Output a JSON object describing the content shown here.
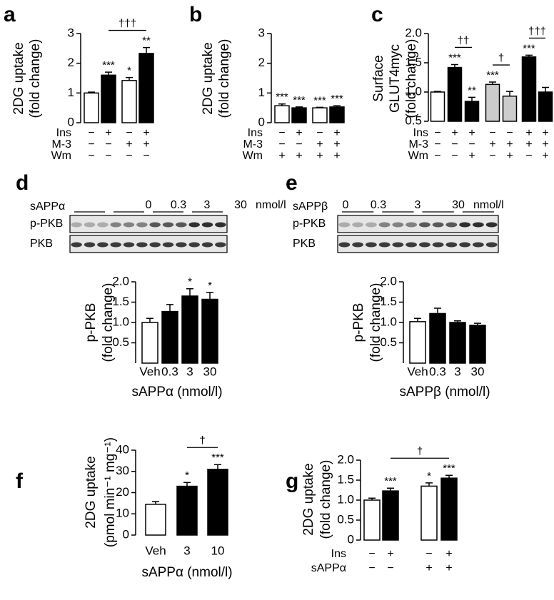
{
  "chart_data": [
    {
      "type": "bar",
      "panel": "a",
      "ylabel": [
        "2DG uptake",
        "(fold change)"
      ],
      "ylim": [
        0,
        3
      ],
      "yticks": [
        0,
        1,
        2,
        3
      ],
      "values": [
        1.0,
        1.6,
        1.42,
        2.33
      ],
      "errors": [
        0.03,
        0.1,
        0.1,
        0.2
      ],
      "colors": [
        "#ffffff",
        "#000000",
        "#ffffff",
        "#000000"
      ],
      "annotations": [
        null,
        "***",
        "*",
        "**"
      ],
      "brackets": [
        {
          "bars": [
            1,
            3
          ],
          "label": "†††"
        }
      ],
      "conditions": [
        {
          "label": "Ins",
          "signs": [
            "−",
            "+",
            "−",
            "+"
          ]
        },
        {
          "label": "M-3",
          "signs": [
            "−",
            "−",
            "+",
            "+"
          ]
        },
        {
          "label": "Wm",
          "signs": [
            "−",
            "−",
            "−",
            "−"
          ]
        }
      ]
    },
    {
      "type": "bar",
      "panel": "b",
      "ylabel": [
        "2DG uptake",
        "(fold change)"
      ],
      "ylim": [
        0,
        3
      ],
      "yticks": [
        0,
        1,
        2,
        3
      ],
      "values": [
        0.57,
        0.5,
        0.5,
        0.53
      ],
      "errors": [
        0.06,
        0.03,
        0.02,
        0.04
      ],
      "colors": [
        "#ffffff",
        "#000000",
        "#ffffff",
        "#000000"
      ],
      "annotations": [
        "***",
        "***",
        "***",
        "***"
      ],
      "conditions": [
        {
          "label": "Ins",
          "signs": [
            "−",
            "+",
            "−",
            "+"
          ]
        },
        {
          "label": "M-3",
          "signs": [
            "−",
            "−",
            "+",
            "+"
          ]
        },
        {
          "label": "Wm",
          "signs": [
            "+",
            "+",
            "+",
            "+"
          ]
        }
      ]
    },
    {
      "type": "bar",
      "panel": "c",
      "ylabel": [
        "Surface",
        "GLUT4myc",
        "(fold change)"
      ],
      "ylim": [
        0.5,
        2.0
      ],
      "yticks": [
        0.5,
        {
          "value": 1.0,
          "label": "1.0"
        },
        1.5,
        {
          "value": 2.0,
          "label": "2.0"
        }
      ],
      "values": [
        1.0,
        1.42,
        0.84,
        1.13,
        0.93,
        1.6,
        1.0
      ],
      "errors": [
        0.01,
        0.05,
        0.07,
        0.04,
        0.08,
        0.03,
        0.08
      ],
      "colors": [
        "#ffffff",
        "#000000",
        "#000000",
        "#cccccc",
        "#cccccc",
        "#000000",
        "#000000"
      ],
      "annotations": [
        null,
        "***",
        "**",
        "***",
        null,
        "***",
        null
      ],
      "brackets": [
        {
          "bars": [
            1,
            2
          ],
          "label": "††"
        },
        {
          "bars": [
            3,
            4
          ],
          "label": "†"
        },
        {
          "bars": [
            5,
            6
          ],
          "label": "†††"
        }
      ],
      "conditions": [
        {
          "label": "Ins",
          "signs": [
            "−",
            "+",
            "+",
            "−",
            "−",
            "+",
            "+"
          ]
        },
        {
          "label": "M-3",
          "signs": [
            "−",
            "−",
            "−",
            "+",
            "+",
            "+",
            "+"
          ]
        },
        {
          "label": "Wm",
          "signs": [
            "−",
            "−",
            "+",
            "−",
            "+",
            "−",
            "+"
          ]
        }
      ]
    },
    {
      "type": "bar",
      "panel": "d",
      "ylabel": [
        "p-PKB",
        "(fold change)"
      ],
      "ylim": [
        0,
        2.0
      ],
      "yticks": [
        0.5,
        {
          "value": 1.0,
          "label": "1.0"
        },
        1.5,
        {
          "value": 2.0,
          "label": "2.0"
        }
      ],
      "categories": [
        "Veh",
        "0.3",
        "3",
        "30"
      ],
      "xlabel": "sAPPα (nmol/l)",
      "values": [
        1.0,
        1.27,
        1.65,
        1.57
      ],
      "errors": [
        0.1,
        0.17,
        0.18,
        0.17
      ],
      "colors": [
        "#ffffff",
        "#000000",
        "#000000",
        "#000000"
      ],
      "annotations": [
        null,
        null,
        "*",
        "*"
      ],
      "blot": {
        "treatment": "sAPPα",
        "doses": [
          "0",
          "0.3",
          "3",
          "30"
        ],
        "unit": "nmol/l",
        "rows": [
          "p-PKB",
          "PKB"
        ]
      }
    },
    {
      "type": "bar",
      "panel": "e",
      "ylabel": [
        "p-PKB",
        "(fold change)"
      ],
      "ylim": [
        0,
        2.0
      ],
      "yticks": [
        0.5,
        {
          "value": 1.0,
          "label": "1.0"
        },
        1.5,
        {
          "value": 2.0,
          "label": "2.0"
        }
      ],
      "categories": [
        "Veh",
        "0.3",
        "3",
        "30"
      ],
      "xlabel": "sAPPβ (nmol/l)",
      "values": [
        1.02,
        1.22,
        1.0,
        0.93
      ],
      "errors": [
        0.08,
        0.13,
        0.04,
        0.05
      ],
      "colors": [
        "#ffffff",
        "#000000",
        "#000000",
        "#000000"
      ],
      "blot": {
        "treatment": "sAPPβ",
        "doses": [
          "0",
          "0.3",
          "3",
          "30"
        ],
        "unit": "nmol/l",
        "rows": [
          "p-PKB",
          "PKB"
        ]
      }
    },
    {
      "type": "bar",
      "panel": "f",
      "ylabel": [
        "2DG uptake",
        "(pmol min⁻¹ mg⁻¹)"
      ],
      "ylim": [
        0,
        40
      ],
      "yticks": [
        0,
        10,
        20,
        30,
        40
      ],
      "categories": [
        "Veh",
        "3",
        "10"
      ],
      "xlabel": "sAPPα (nmol/l)",
      "values": [
        14.5,
        23,
        31
      ],
      "errors": [
        1.3,
        1.8,
        2.2
      ],
      "colors": [
        "#ffffff",
        "#000000",
        "#000000"
      ],
      "annotations": [
        null,
        "*",
        "***"
      ],
      "brackets": [
        {
          "bars": [
            1,
            2
          ],
          "label": "†"
        }
      ]
    },
    {
      "type": "bar",
      "panel": "g",
      "ylabel": [
        "2DG uptake",
        "(fold change)"
      ],
      "ylim": [
        0,
        2.0
      ],
      "yticks": [
        0,
        0.5,
        {
          "value": 1.0,
          "label": "1.0"
        },
        1.5,
        {
          "value": 2.0,
          "label": "2.0"
        }
      ],
      "values": [
        1.0,
        1.23,
        1.35,
        1.55
      ],
      "errors": [
        0.05,
        0.07,
        0.08,
        0.07
      ],
      "colors": [
        "#ffffff",
        "#000000",
        "#ffffff",
        "#000000"
      ],
      "annotations": [
        null,
        "***",
        "*",
        "***"
      ],
      "brackets": [
        {
          "bars": [
            1,
            3
          ],
          "label": "†"
        }
      ],
      "conditions": [
        {
          "label": "Ins",
          "signs": [
            "−",
            "+",
            "−",
            "+"
          ]
        },
        {
          "label": "sAPPα",
          "signs": [
            "−",
            "−",
            "+",
            "+"
          ]
        }
      ]
    }
  ]
}
